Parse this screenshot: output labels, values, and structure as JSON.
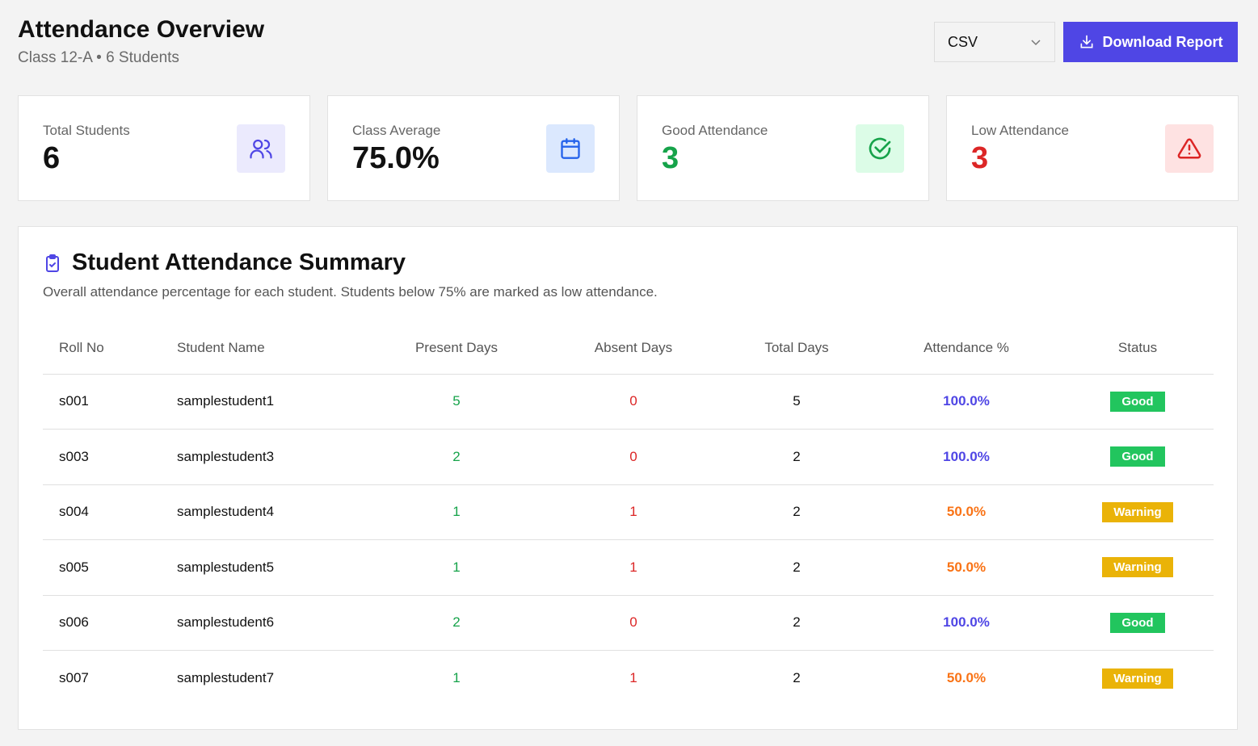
{
  "header": {
    "title": "Attendance Overview",
    "subtitle": "Class 12-A • 6 Students",
    "format": "CSV",
    "download_label": "Download Report"
  },
  "cards": [
    {
      "label": "Total Students",
      "value": "6",
      "icon": "users-icon",
      "color": "#111111",
      "bg": "#ebeafd",
      "fg": "#4f46e5"
    },
    {
      "label": "Class Average",
      "value": "75.0%",
      "icon": "calendar-icon",
      "color": "#111111",
      "bg": "#dbe8fe",
      "fg": "#2563eb"
    },
    {
      "label": "Good Attendance",
      "value": "3",
      "icon": "check-circle-icon",
      "color": "#16a34a",
      "bg": "#dcfce7",
      "fg": "#16a34a"
    },
    {
      "label": "Low Attendance",
      "value": "3",
      "icon": "alert-triangle-icon",
      "color": "#dc2626",
      "bg": "#fee2e2",
      "fg": "#dc2626"
    }
  ],
  "summary": {
    "title": "Student Attendance Summary",
    "description": "Overall attendance percentage for each student. Students below 75% are marked as low attendance.",
    "columns": [
      "Roll No",
      "Student Name",
      "Present Days",
      "Absent Days",
      "Total Days",
      "Attendance %",
      "Status"
    ],
    "rows": [
      {
        "roll": "s001",
        "name": "samplestudent1",
        "present": "5",
        "absent": "0",
        "total": "5",
        "pct": "100.0%",
        "status": "Good"
      },
      {
        "roll": "s003",
        "name": "samplestudent3",
        "present": "2",
        "absent": "0",
        "total": "2",
        "pct": "100.0%",
        "status": "Good"
      },
      {
        "roll": "s004",
        "name": "samplestudent4",
        "present": "1",
        "absent": "1",
        "total": "2",
        "pct": "50.0%",
        "status": "Warning"
      },
      {
        "roll": "s005",
        "name": "samplestudent5",
        "present": "1",
        "absent": "1",
        "total": "2",
        "pct": "50.0%",
        "status": "Warning"
      },
      {
        "roll": "s006",
        "name": "samplestudent6",
        "present": "2",
        "absent": "0",
        "total": "2",
        "pct": "100.0%",
        "status": "Good"
      },
      {
        "roll": "s007",
        "name": "samplestudent7",
        "present": "1",
        "absent": "1",
        "total": "2",
        "pct": "50.0%",
        "status": "Warning"
      }
    ]
  },
  "colors": {
    "accent": "#4f46e5",
    "present": "#16a34a",
    "absent": "#dc2626",
    "good_pct": "#4f46e5",
    "warn_pct": "#f97316",
    "good_badge": "#22c55e",
    "warn_badge": "#eab308"
  }
}
